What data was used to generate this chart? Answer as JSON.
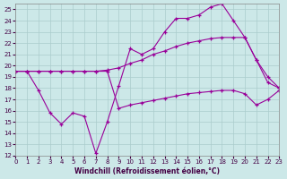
{
  "xlabel": "Windchill (Refroidissement éolien,°C)",
  "bg_color": "#cce8e8",
  "grid_color": "#aacccc",
  "line_color": "#990099",
  "xlim": [
    0,
    23
  ],
  "ylim": [
    12,
    25.5
  ],
  "xticks": [
    0,
    1,
    2,
    3,
    4,
    5,
    6,
    7,
    8,
    9,
    10,
    11,
    12,
    13,
    14,
    15,
    16,
    17,
    18,
    19,
    20,
    21,
    22,
    23
  ],
  "yticks": [
    12,
    13,
    14,
    15,
    16,
    17,
    18,
    19,
    20,
    21,
    22,
    23,
    24,
    25
  ],
  "line1_x": [
    0,
    1,
    2,
    3,
    4,
    5,
    6,
    7,
    8,
    9,
    10,
    11,
    12,
    13,
    14,
    15,
    16,
    17,
    18,
    19,
    20,
    21,
    22,
    23
  ],
  "line1_y": [
    19.5,
    19.5,
    17.8,
    15.8,
    14.8,
    15.8,
    15.5,
    12.2,
    15.0,
    18.2,
    21.5,
    21.0,
    21.5,
    23.0,
    24.2,
    24.2,
    24.5,
    25.2,
    25.5,
    24.0,
    22.5,
    20.5,
    18.5,
    18.0
  ],
  "line2_x": [
    0,
    1,
    2,
    3,
    4,
    5,
    6,
    7,
    8,
    9,
    10,
    11,
    12,
    13,
    14,
    15,
    16,
    17,
    18,
    19,
    20,
    21,
    22,
    23
  ],
  "line2_y": [
    19.5,
    19.5,
    19.5,
    19.5,
    19.5,
    19.5,
    19.5,
    19.5,
    19.6,
    19.8,
    20.2,
    20.5,
    21.0,
    21.3,
    21.7,
    22.0,
    22.2,
    22.4,
    22.5,
    22.5,
    22.5,
    20.5,
    19.0,
    18.0
  ],
  "line3_x": [
    0,
    1,
    2,
    3,
    4,
    5,
    6,
    7,
    8,
    9,
    10,
    11,
    12,
    13,
    14,
    15,
    16,
    17,
    18,
    19,
    20,
    21,
    22,
    23
  ],
  "line3_y": [
    19.5,
    19.5,
    19.5,
    19.5,
    19.5,
    19.5,
    19.5,
    19.5,
    19.5,
    16.2,
    16.5,
    16.7,
    16.9,
    17.1,
    17.3,
    17.5,
    17.6,
    17.7,
    17.8,
    17.8,
    17.5,
    16.5,
    17.0,
    17.8
  ]
}
